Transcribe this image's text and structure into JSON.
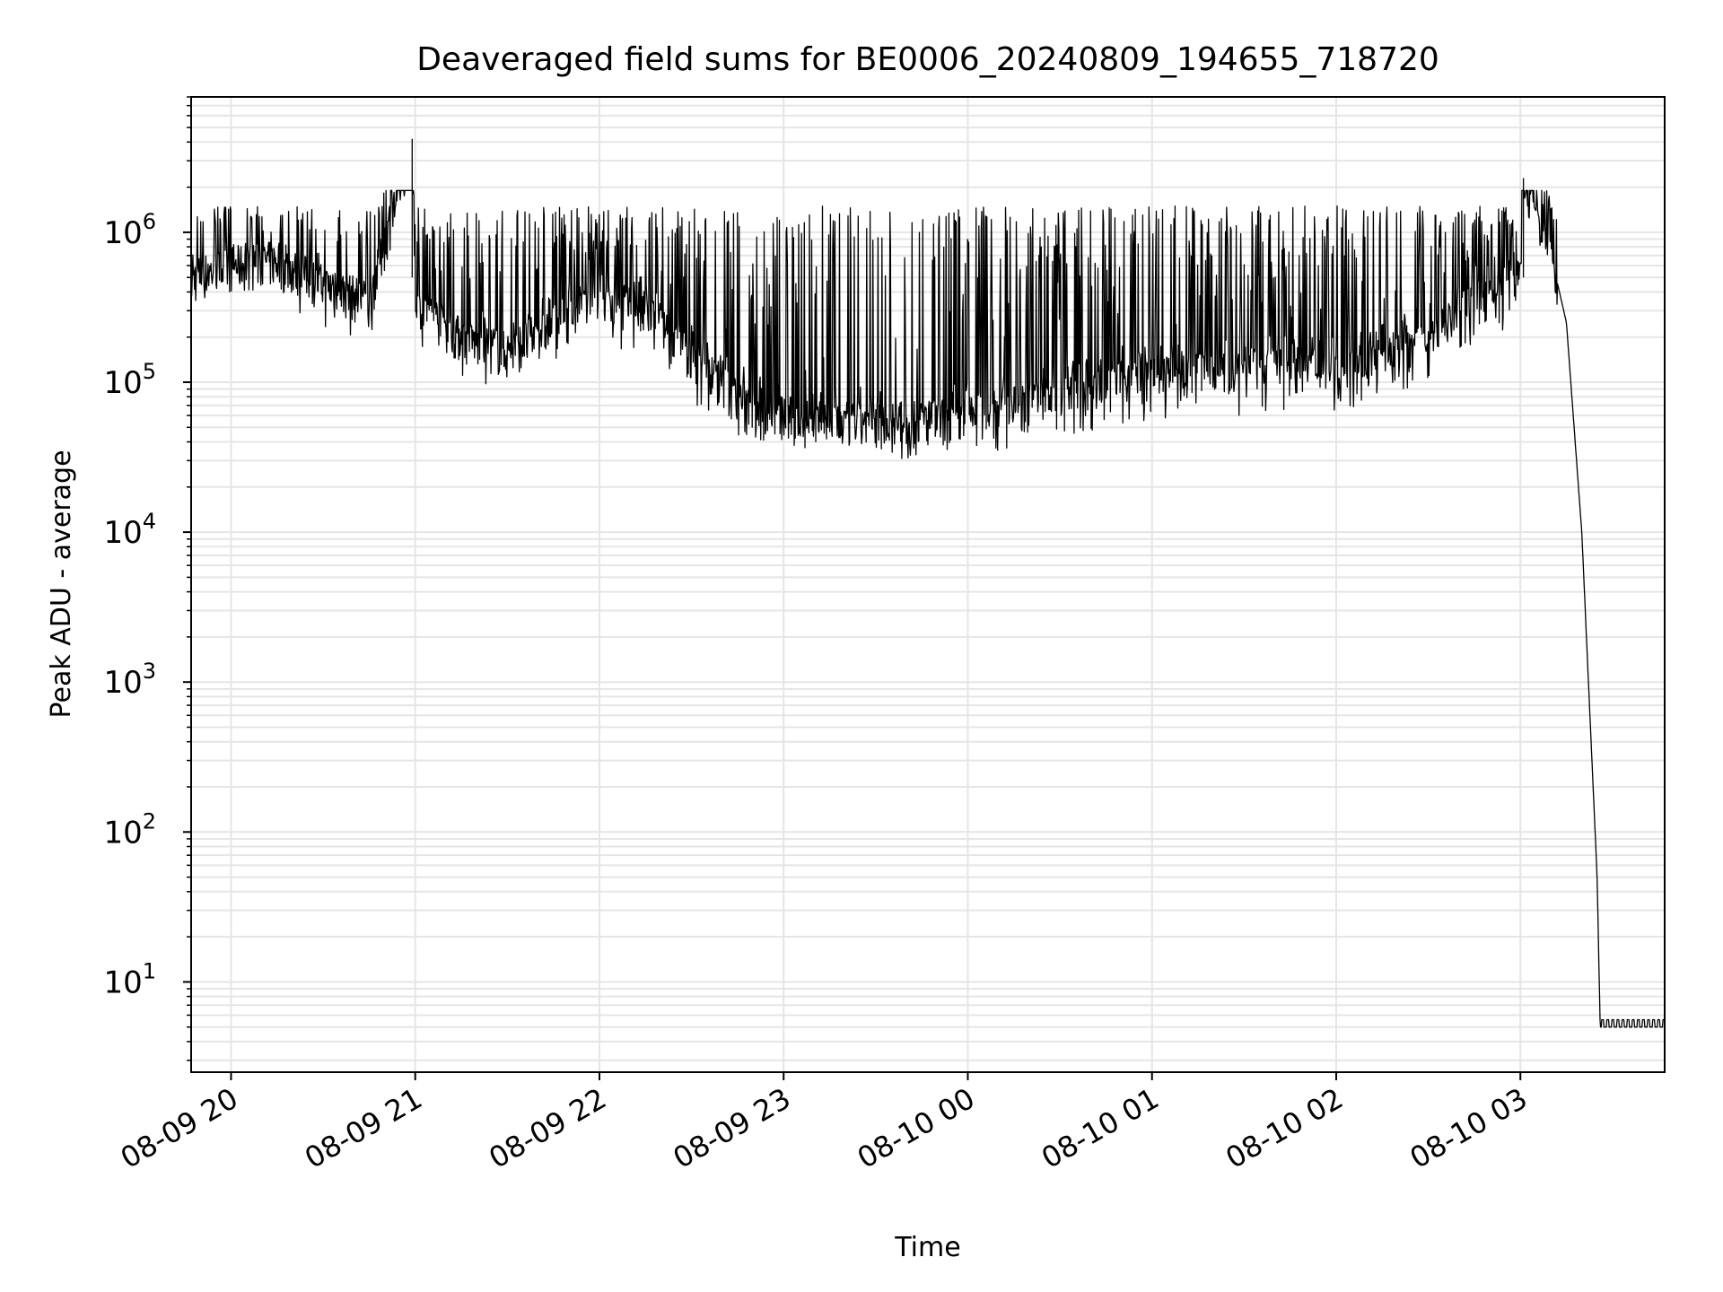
{
  "chart_data": {
    "type": "line",
    "title": "Deaveraged field sums for BE0006_20240809_194655_718720",
    "xlabel": "Time",
    "ylabel": "Peak ADU - average",
    "yscale": "log",
    "ylim": [
      2.5,
      8000000
    ],
    "xlim": [
      "2024-08-09 19:47",
      "2024-08-10 03:47"
    ],
    "grid": true,
    "x_ticks": [
      "08-09 20",
      "08-09 21",
      "08-09 22",
      "08-09 23",
      "08-10 00",
      "08-10 01",
      "08-10 02",
      "08-10 03"
    ],
    "y_ticks": [
      {
        "base": "10",
        "exp": "1",
        "value": 10
      },
      {
        "base": "10",
        "exp": "2",
        "value": 100
      },
      {
        "base": "10",
        "exp": "3",
        "value": 1000
      },
      {
        "base": "10",
        "exp": "4",
        "value": 10000
      },
      {
        "base": "10",
        "exp": "5",
        "value": 100000
      },
      {
        "base": "10",
        "exp": "6",
        "value": 1000000
      }
    ],
    "line_color": "#000000",
    "grid_color": "#e5e5e5",
    "series": [
      {
        "points": [
          [
            "2024-08-09 19:47",
            500000
          ],
          [
            "2024-08-09 20:00",
            600000
          ],
          [
            "2024-08-09 20:15",
            650000
          ],
          [
            "2024-08-09 20:30",
            450000
          ],
          [
            "2024-08-09 20:45",
            350000
          ],
          [
            "2024-08-09 20:59",
            4200000
          ],
          [
            "2024-08-09 21:00",
            350000
          ],
          [
            "2024-08-09 21:15",
            200000
          ],
          [
            "2024-08-09 21:30",
            160000
          ],
          [
            "2024-08-09 21:45",
            250000
          ],
          [
            "2024-08-09 22:00",
            350000
          ],
          [
            "2024-08-09 22:15",
            300000
          ],
          [
            "2024-08-09 22:30",
            150000
          ],
          [
            "2024-08-09 22:45",
            80000
          ],
          [
            "2024-08-09 23:00",
            60000
          ],
          [
            "2024-08-09 23:15",
            55000
          ],
          [
            "2024-08-09 23:30",
            55000
          ],
          [
            "2024-08-09 23:45",
            55000
          ],
          [
            "2024-08-10 00:00",
            60000
          ],
          [
            "2024-08-10 00:15",
            70000
          ],
          [
            "2024-08-10 00:30",
            80000
          ],
          [
            "2024-08-10 00:45",
            100000
          ],
          [
            "2024-08-10 01:00",
            110000
          ],
          [
            "2024-08-10 01:15",
            120000
          ],
          [
            "2024-08-10 01:30",
            120000
          ],
          [
            "2024-08-10 01:45",
            130000
          ],
          [
            "2024-08-10 02:00",
            130000
          ],
          [
            "2024-08-10 02:15",
            150000
          ],
          [
            "2024-08-10 02:30",
            200000
          ],
          [
            "2024-08-10 02:45",
            350000
          ],
          [
            "2024-08-10 03:00",
            500000
          ],
          [
            "2024-08-10 03:01",
            2300000
          ],
          [
            "2024-08-10 03:10",
            700000
          ],
          [
            "2024-08-10 03:15",
            250000
          ],
          [
            "2024-08-10 03:20",
            10000
          ],
          [
            "2024-08-10 03:25",
            50
          ],
          [
            "2024-08-10 03:26",
            5
          ],
          [
            "2024-08-10 03:33",
            9
          ],
          [
            "2024-08-10 03:36",
            5
          ],
          [
            "2024-08-10 03:47",
            5
          ]
        ]
      }
    ]
  }
}
